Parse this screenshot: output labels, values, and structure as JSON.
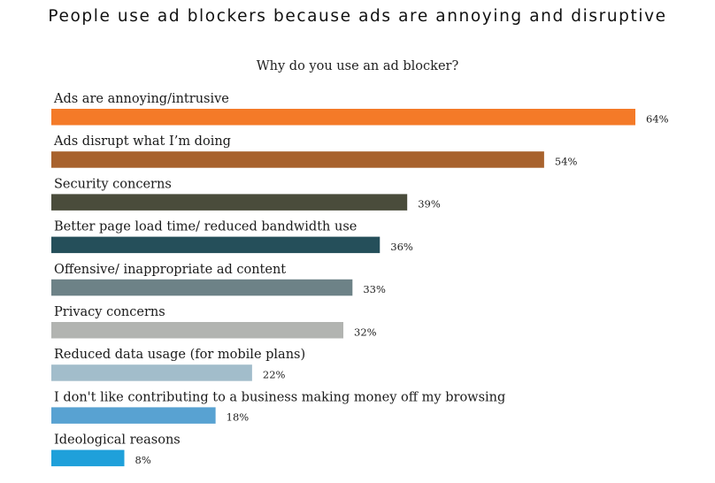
{
  "title": "People use ad blockers because ads are annoying and disruptive",
  "chart_data": {
    "type": "bar",
    "orientation": "horizontal",
    "title": "Why do you use an ad blocker?",
    "xlabel": "",
    "ylabel": "",
    "xlim": [
      0,
      64
    ],
    "grid": false,
    "categories": [
      "Ads are annoying/intrusive",
      "Ads disrupt what I’m doing",
      "Security concerns",
      "Better page load time/ reduced bandwidth use",
      "Offensive/ inappropriate ad content",
      "Privacy concerns",
      "Reduced data usage (for mobile plans)",
      "I don't like contributing to a business making money off my browsing",
      "Ideological reasons"
    ],
    "values": [
      64,
      54,
      39,
      36,
      33,
      32,
      22,
      18,
      8
    ],
    "value_labels": [
      "64%",
      "54%",
      "39%",
      "36%",
      "33%",
      "32%",
      "22%",
      "18%",
      "8%"
    ],
    "colors": [
      "#f47a28",
      "#a8622d",
      "#4a4c3b",
      "#254f5a",
      "#6d8287",
      "#b2b4b1",
      "#a2bdcb",
      "#58a2d2",
      "#1fa0da"
    ]
  }
}
